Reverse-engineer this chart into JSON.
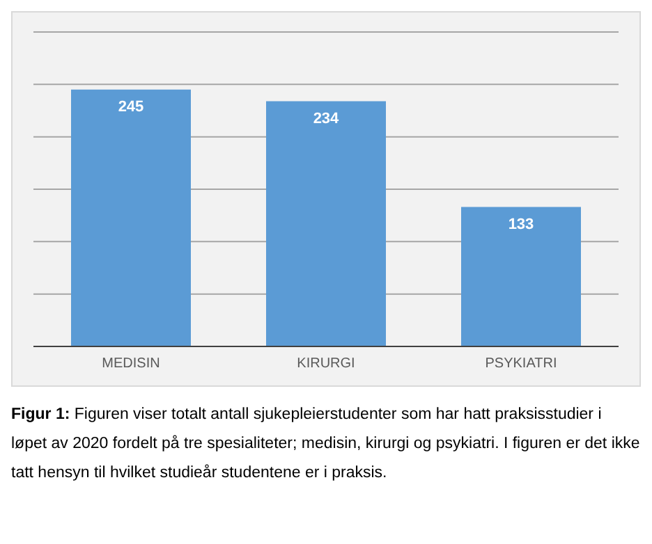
{
  "chart_data": {
    "type": "bar",
    "categories": [
      "MEDISIN",
      "KIRURGI",
      "PSYKIATRI"
    ],
    "values": [
      245,
      234,
      133
    ],
    "color": "#5b9bd5",
    "data_labels": true,
    "ylim": [
      0,
      300
    ],
    "yticks": [
      {
        "value": 0,
        "label": null
      },
      {
        "value": 50,
        "label": null
      },
      {
        "value": 100,
        "label": null
      },
      {
        "value": 150,
        "label": null
      },
      {
        "value": 200,
        "label": null
      },
      {
        "value": 250,
        "label": null
      },
      {
        "value": 300,
        "label": null
      }
    ],
    "tick_labels": "x",
    "grid": "y",
    "annotations": [
      "Figur 1: Figuren viser totalt antall sjukepleierstudenter som har hatt praksisstudier i løpet av 2020 fordelt på tre spesialiteter; medisin, kirurgi og psykiatri. I figuren er det ikke tatt hensyn til hvilket studieår studentene er i praksis."
    ]
  }
}
